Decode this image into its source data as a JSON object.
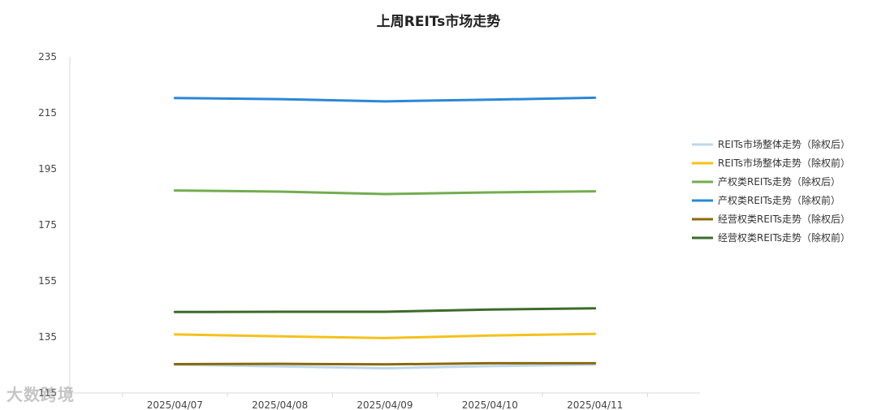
{
  "chart_data": {
    "type": "line",
    "title": "上周REITs市场走势",
    "categories": [
      "2025/04/07",
      "2025/04/08",
      "2025/04/09",
      "2025/04/10",
      "2025/04/11"
    ],
    "ylim": [
      115,
      235
    ],
    "yticks": [
      115,
      135,
      155,
      175,
      195,
      215,
      235
    ],
    "grid": false,
    "legend_position": "right",
    "series": [
      {
        "name": "REITs市场整体走势（除权后）",
        "color": "#bdd7ee",
        "values": [
          125.1,
          124.5,
          123.8,
          124.6,
          125.1
        ]
      },
      {
        "name": "REITs市场整体走势（除权前）",
        "color": "#f5c11c",
        "values": [
          135.9,
          135.2,
          134.6,
          135.5,
          136.1
        ]
      },
      {
        "name": "产权类REITs走势（除权后）",
        "color": "#72ad4e",
        "values": [
          187.3,
          186.9,
          186.0,
          186.6,
          187.0
        ]
      },
      {
        "name": "产权类REITs走势（除权前）",
        "color": "#2b87d8",
        "values": [
          220.3,
          219.9,
          219.1,
          219.7,
          220.4
        ]
      },
      {
        "name": "经营权类REITs走势（除权后）",
        "color": "#8a6a0b",
        "values": [
          125.3,
          125.4,
          125.2,
          125.6,
          125.6
        ]
      },
      {
        "name": "经营权类REITs走势（除权前）",
        "color": "#3d6b2a",
        "values": [
          143.9,
          144.0,
          144.0,
          144.8,
          145.2
        ]
      }
    ]
  },
  "watermark": "大数跨境"
}
